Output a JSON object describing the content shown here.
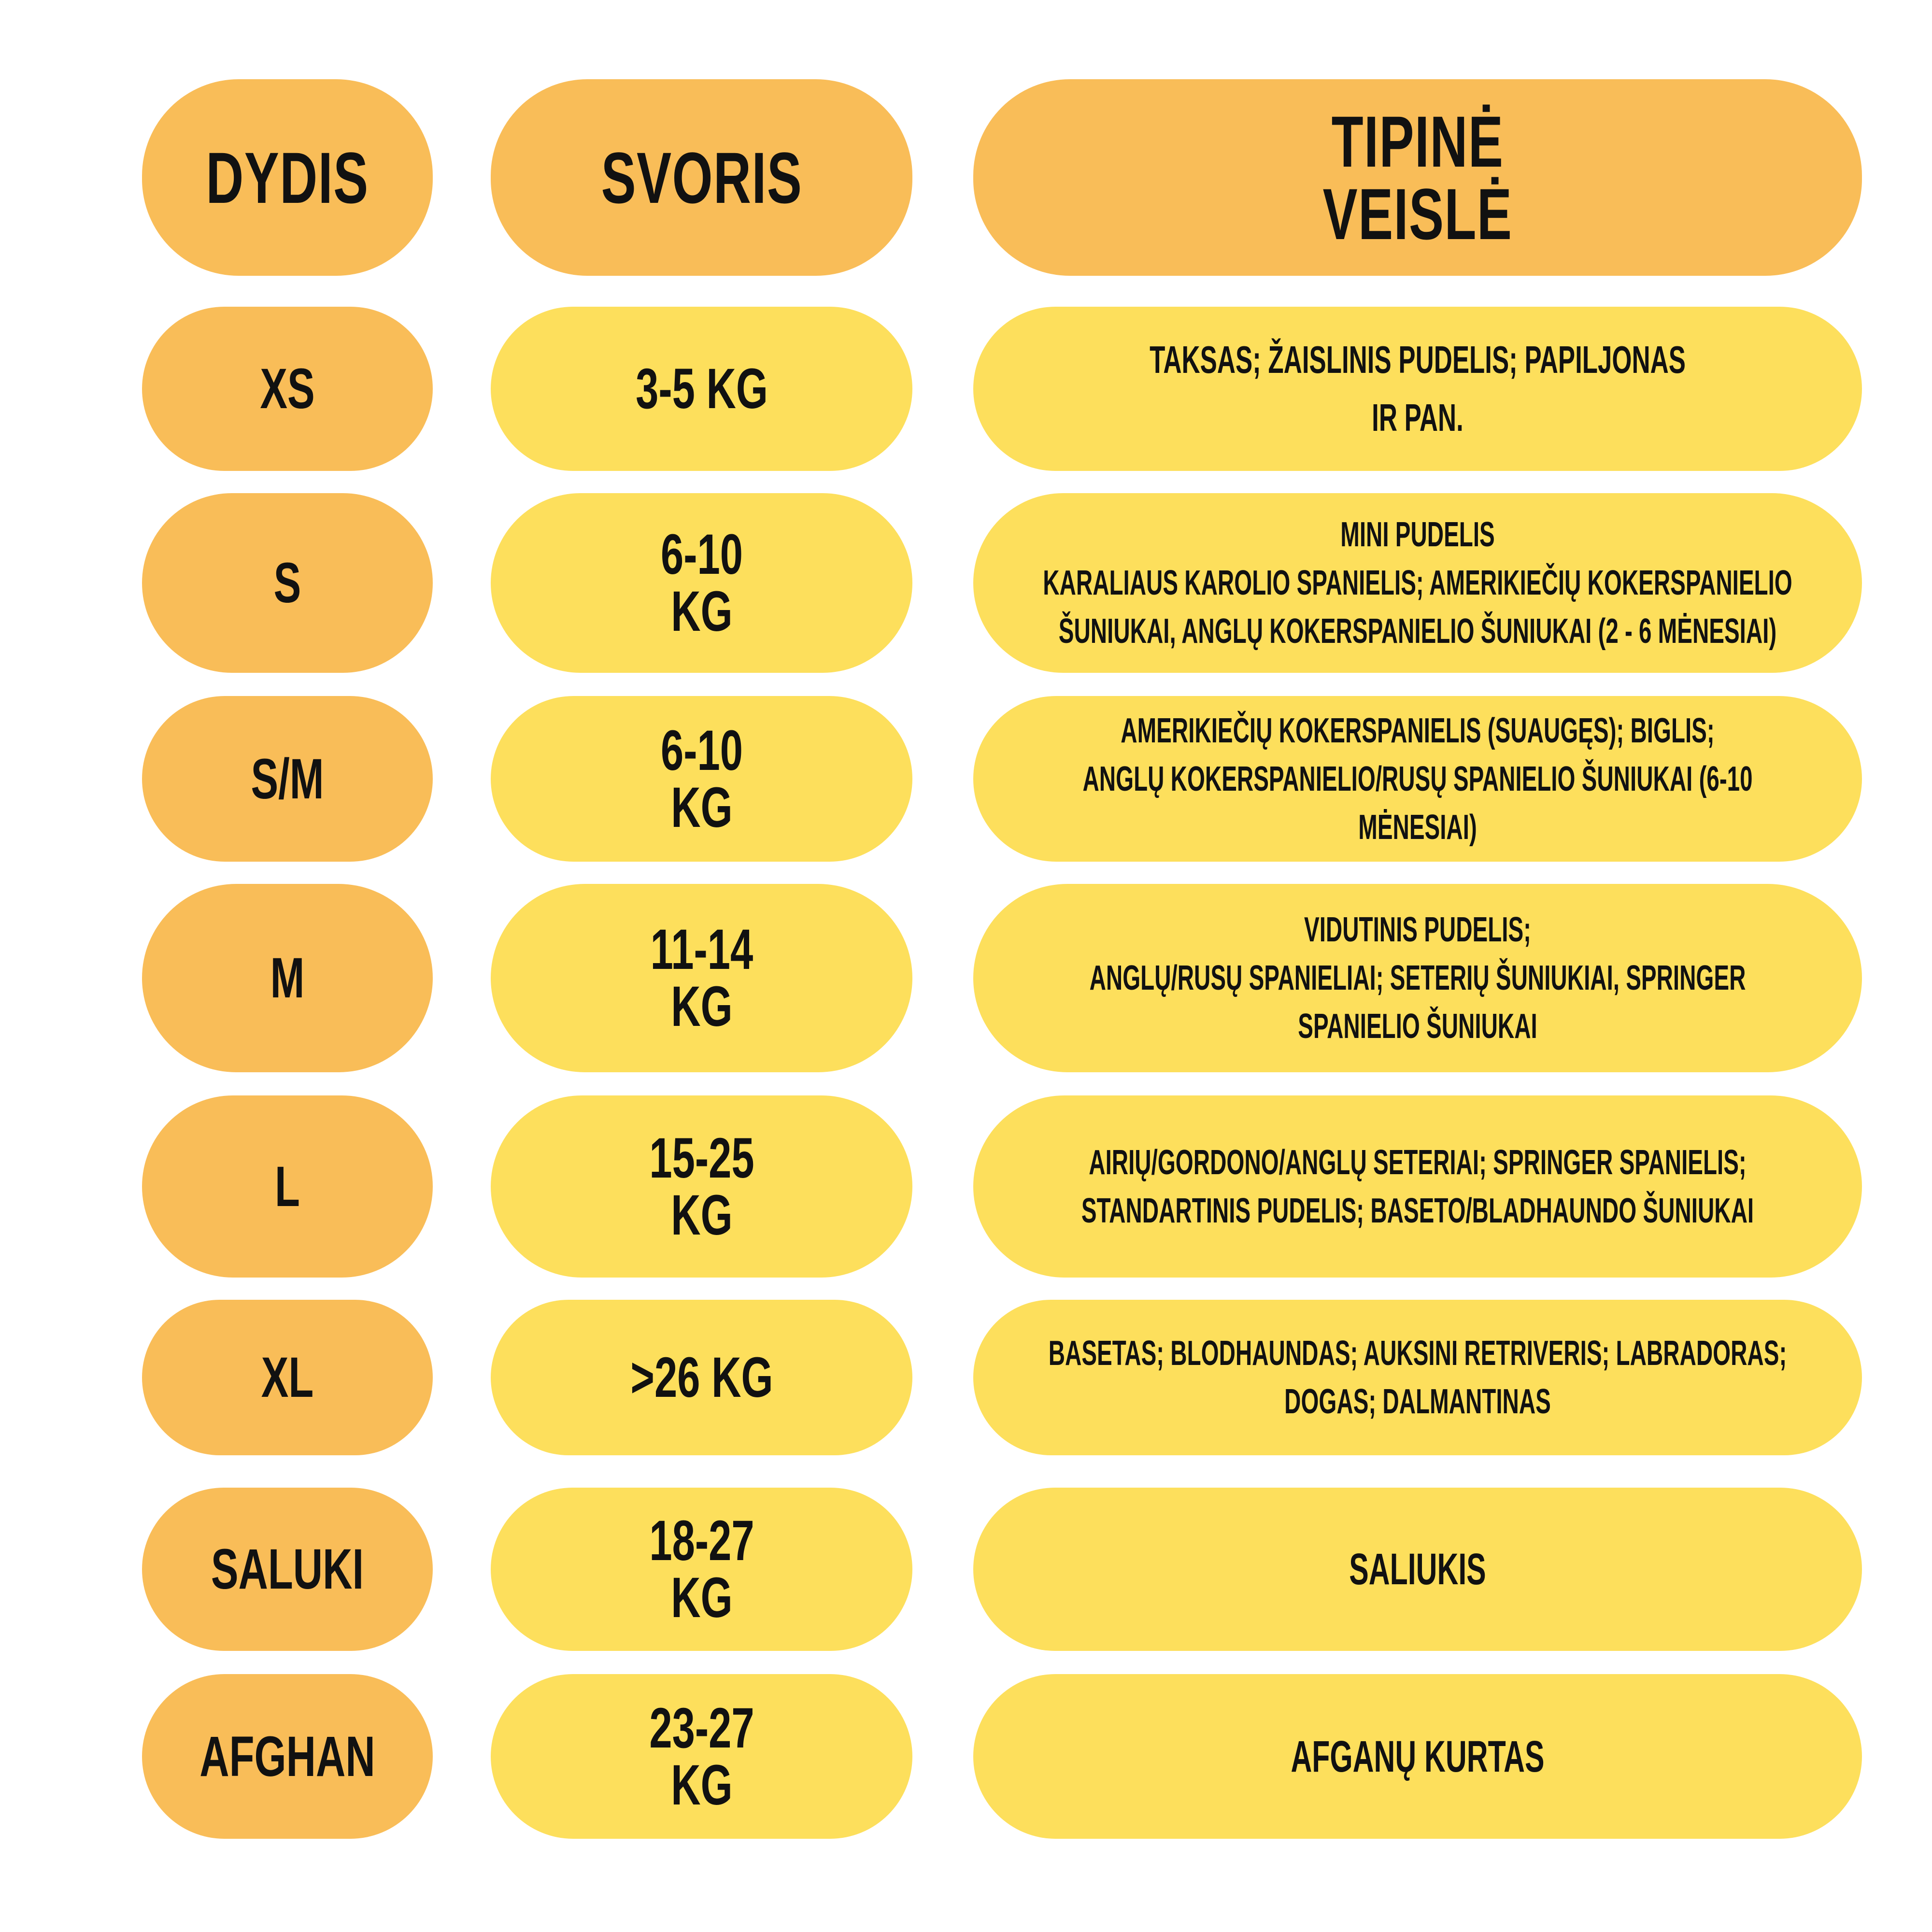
{
  "colors": {
    "header_bg": "#F9BD58",
    "size_bg": "#F9BD58",
    "cell_bg": "#FDDF5C",
    "text": "#111111"
  },
  "header": {
    "size": "DYDIS",
    "weight": "SVORIS",
    "breed": "TIPINĖ VEISLĖ"
  },
  "rows": [
    {
      "size": "XS",
      "weight": "3-5 KG",
      "breed": "TAKSAS; ŽAISLINIS PUDELIS; PAPILJONAS\nIR PAN."
    },
    {
      "size": "S",
      "weight": "6-10 KG",
      "breed": "MINI PUDELIS\nKARALIAUS KAROLIO SPANIELIS; AMERIKIEČIŲ KOKERSPANIELIO\nŠUNIUKAI, ANGLŲ KOKERSPANIELIO ŠUNIUKAI (2 - 6 MĖNESIAI)"
    },
    {
      "size": "S/M",
      "weight": "6-10 KG",
      "breed": "AMERIKIEČIŲ KOKERSPANIELIS (SUAUGĘS); BIGLIS;\nANGLŲ KOKERSPANIELIO/RUSŲ SPANIELIO ŠUNIUKAI (6-10\nMĖNESIAI)"
    },
    {
      "size": "M",
      "weight": "11-14 KG",
      "breed": "VIDUTINIS PUDELIS;\nANGLŲ/RUSŲ SPANIELIAI; SETERIŲ ŠUNIUKIAI, SPRINGER\nSPANIELIO ŠUNIUKAI"
    },
    {
      "size": "L",
      "weight": "15-25 KG",
      "breed": "AIRIŲ/GORDONO/ANGLŲ SETERIAI; SPRINGER SPANIELIS;\nSTANDARTINIS PUDELIS; BASETO/BLADHAUNDO ŠUNIUKAI"
    },
    {
      "size": "XL",
      "weight": ">26 KG",
      "breed": "BASETAS; BLODHAUNDAS; AUKSINI RETRIVERIS; LABRADORAS;\nDOGAS; DALMANTINAS"
    },
    {
      "size": "SALUKI",
      "weight": "18-27 KG",
      "breed": "SALIUKIS"
    },
    {
      "size": "AFGHAN",
      "weight": "23-27 KG",
      "breed": "AFGANŲ KURTAS"
    }
  ]
}
